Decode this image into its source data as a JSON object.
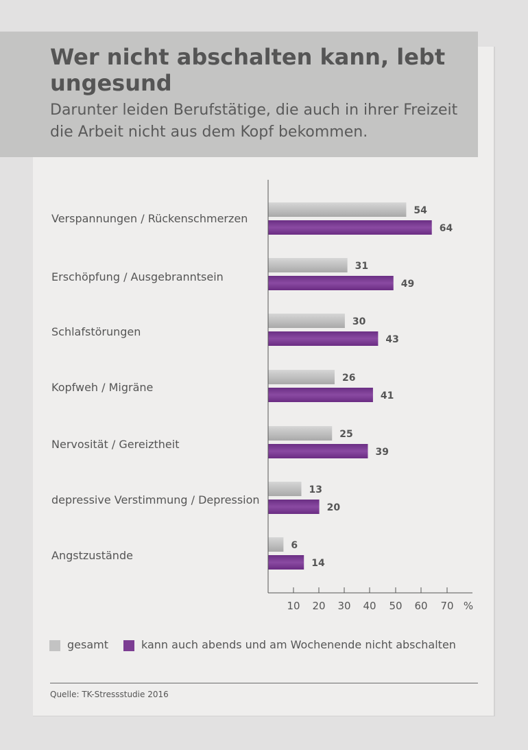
{
  "header": {
    "title": "Wer nicht abschalten kann, lebt ungesund",
    "subtitle": "Darunter leiden Berufstätige, die auch in ihrer Freizeit die Arbeit nicht aus dem Kopf bekommen."
  },
  "colors": {
    "gesamt": "#c3c3c3",
    "highlight": "#7c3d93",
    "header_bg": "#c4c4c3",
    "card_bg": "#efeeed"
  },
  "chart_data": {
    "type": "bar",
    "orientation": "horizontal",
    "categories": [
      "Verspannungen / Rückenschmerzen",
      "Erschöpfung / Ausgebranntsein",
      "Schlafstörungen",
      "Kopfweh / Migräne",
      "Nervosität / Gereiztheit",
      "depressive Verstimmung / Depression",
      "Angstzustände"
    ],
    "series": [
      {
        "name": "gesamt",
        "values": [
          54,
          31,
          30,
          26,
          25,
          13,
          6
        ]
      },
      {
        "name": "kann auch abends und am Wochenende nicht abschalten",
        "values": [
          64,
          49,
          43,
          41,
          39,
          20,
          14
        ]
      }
    ],
    "xticks": [
      "10",
      "20",
      "30",
      "40",
      "50",
      "60",
      "70"
    ],
    "xunit": "%",
    "xlim": [
      0,
      80
    ],
    "grid": false,
    "legend_position": "bottom"
  },
  "legend": [
    {
      "label": "gesamt"
    },
    {
      "label": "kann auch abends und am Wochenende nicht abschalten"
    }
  ],
  "footer": {
    "source": "Quelle: TK-Stressstudie 2016"
  }
}
